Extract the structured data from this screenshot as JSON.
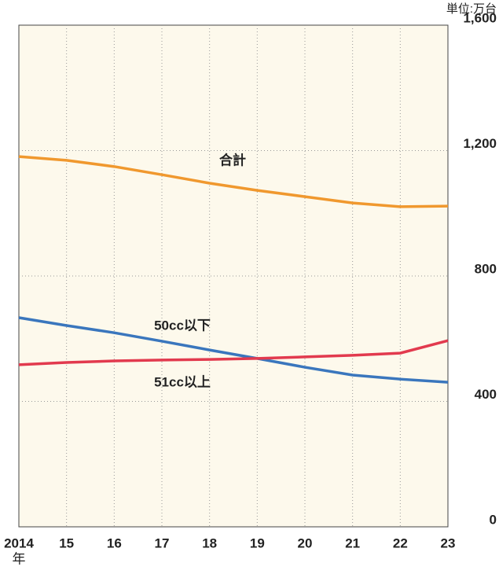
{
  "chart_data": {
    "type": "line",
    "y_label": "単位:万台",
    "x_unit": "年",
    "categories": [
      "2014",
      "15",
      "16",
      "17",
      "18",
      "19",
      "20",
      "21",
      "22",
      "23"
    ],
    "series": [
      {
        "name": "合計",
        "color": "#f0982e",
        "values": [
          1181,
          1169,
          1149,
          1123,
          1096,
          1073,
          1053,
          1033,
          1021,
          1023
        ]
      },
      {
        "name": "50cc以下",
        "color": "#3a76bd",
        "values": [
          667,
          642,
          619,
          592,
          564,
          537,
          509,
          484,
          471,
          461
        ]
      },
      {
        "name": "51cc以上",
        "color": "#e23a4e",
        "values": [
          517,
          524,
          529,
          532,
          534,
          537,
          542,
          547,
          554,
          594
        ]
      }
    ],
    "ylim": [
      0,
      1600
    ],
    "yticks": [
      0,
      400,
      800,
      {
        "value": 1200,
        "label": "1,200"
      },
      {
        "value": 1600,
        "label": "1,600"
      }
    ],
    "grid": true
  }
}
